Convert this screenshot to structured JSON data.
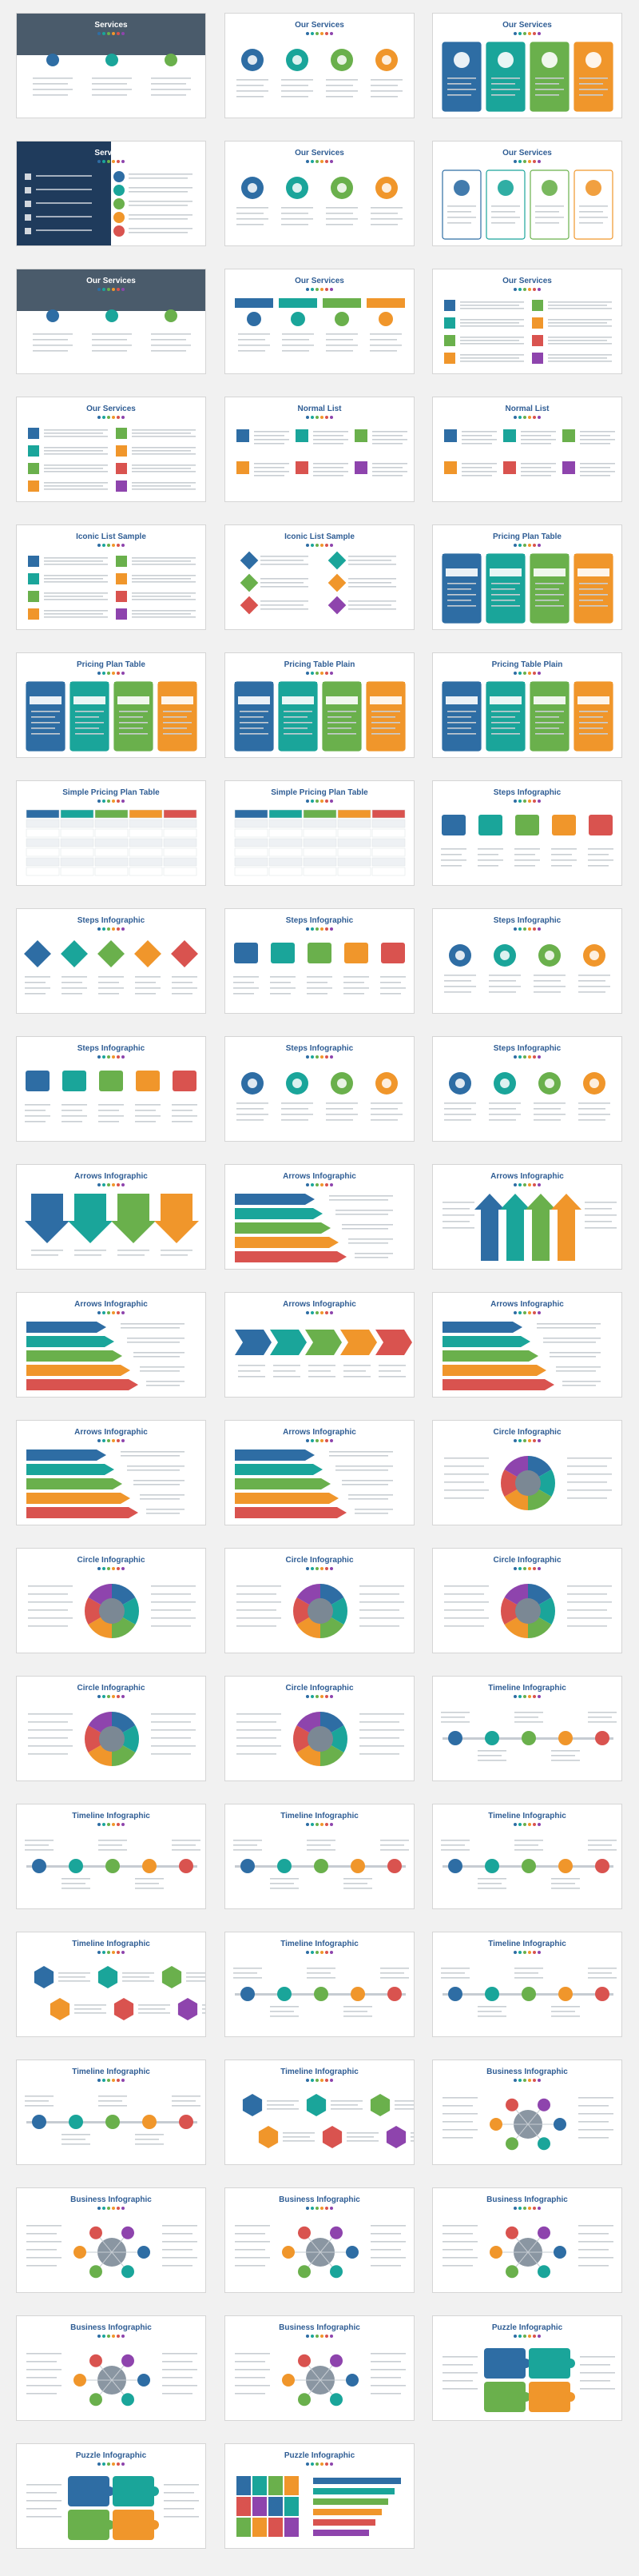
{
  "palette": {
    "blue": "#2e6da4",
    "teal": "#1aa59a",
    "green": "#6ab04c",
    "orange": "#f0962b",
    "red": "#d9534f",
    "purple": "#8e44ad",
    "navy": "#1f3b5c",
    "grey": "#9aa3ad"
  },
  "slides": [
    {
      "title": "Services",
      "style": "photo-header"
    },
    {
      "title": "Our Services",
      "style": "icon-row"
    },
    {
      "title": "Our Services",
      "style": "color-cards"
    },
    {
      "title": "Services",
      "style": "dark-list"
    },
    {
      "title": "Our Services",
      "style": "icon-row"
    },
    {
      "title": "Our Services",
      "style": "icon-cards"
    },
    {
      "title": "Our Services",
      "style": "photo-header"
    },
    {
      "title": "Our Services",
      "style": "columns"
    },
    {
      "title": "Our Services",
      "style": "icon-list"
    },
    {
      "title": "Our Services",
      "style": "icon-list"
    },
    {
      "title": "Normal List",
      "style": "numbered"
    },
    {
      "title": "Normal List",
      "style": "numbered"
    },
    {
      "title": "Iconic List Sample",
      "style": "icon-table"
    },
    {
      "title": "Iconic List Sample",
      "style": "diamond-list"
    },
    {
      "title": "Pricing Plan Table",
      "style": "pricing"
    },
    {
      "title": "Pricing Plan Table",
      "style": "pricing"
    },
    {
      "title": "Pricing Table Plain",
      "style": "pricing"
    },
    {
      "title": "Pricing Table Plain",
      "style": "pricing"
    },
    {
      "title": "Simple Pricing Plan Table",
      "style": "table"
    },
    {
      "title": "Simple Pricing Plan Table",
      "style": "table"
    },
    {
      "title": "Steps Infographic",
      "style": "steps"
    },
    {
      "title": "Steps Infographic",
      "style": "steps-diamond"
    },
    {
      "title": "Steps Infographic",
      "style": "steps"
    },
    {
      "title": "Steps Infographic",
      "style": "steps-circle"
    },
    {
      "title": "Steps Infographic",
      "style": "steps"
    },
    {
      "title": "Steps Infographic",
      "style": "steps-circle"
    },
    {
      "title": "Steps Infographic",
      "style": "steps-circle"
    },
    {
      "title": "Arrows Infographic",
      "style": "arrows-down"
    },
    {
      "title": "Arrows Infographic",
      "style": "arrows-right"
    },
    {
      "title": "Arrows Infographic",
      "style": "arrows-up"
    },
    {
      "title": "Arrows Infographic",
      "style": "arrows-right"
    },
    {
      "title": "Arrows Infographic",
      "style": "chevrons"
    },
    {
      "title": "Arrows Infographic",
      "style": "arrows-right"
    },
    {
      "title": "Arrows Infographic",
      "style": "arrows-right"
    },
    {
      "title": "Arrows Infographic",
      "style": "arrows-right"
    },
    {
      "title": "Circle Infographic",
      "style": "circle"
    },
    {
      "title": "Circle Infographic",
      "style": "circle"
    },
    {
      "title": "Circle Infographic",
      "style": "circle"
    },
    {
      "title": "Circle Infographic",
      "style": "circle"
    },
    {
      "title": "Circle Infographic",
      "style": "circle"
    },
    {
      "title": "Circle Infographic",
      "style": "circle"
    },
    {
      "title": "Timeline Infographic",
      "style": "timeline"
    },
    {
      "title": "Timeline Infographic",
      "style": "timeline"
    },
    {
      "title": "Timeline Infographic",
      "style": "timeline"
    },
    {
      "title": "Timeline Infographic",
      "style": "timeline"
    },
    {
      "title": "Timeline Infographic",
      "style": "hexagons"
    },
    {
      "title": "Timeline Infographic",
      "style": "timeline"
    },
    {
      "title": "Timeline Infographic",
      "style": "timeline"
    },
    {
      "title": "Timeline Infographic",
      "style": "timeline"
    },
    {
      "title": "Timeline Infographic",
      "style": "hexagons"
    },
    {
      "title": "Business Infographic",
      "style": "business"
    },
    {
      "title": "Business Infographic",
      "style": "business"
    },
    {
      "title": "Business Infographic",
      "style": "business"
    },
    {
      "title": "Business Infographic",
      "style": "business"
    },
    {
      "title": "Business Infographic",
      "style": "business"
    },
    {
      "title": "Business Infographic",
      "style": "business"
    },
    {
      "title": "Puzzle Infographic",
      "style": "puzzle"
    },
    {
      "title": "Puzzle Infographic",
      "style": "puzzle"
    },
    {
      "title": "Puzzle Infographic",
      "style": "puzzle-head"
    }
  ]
}
